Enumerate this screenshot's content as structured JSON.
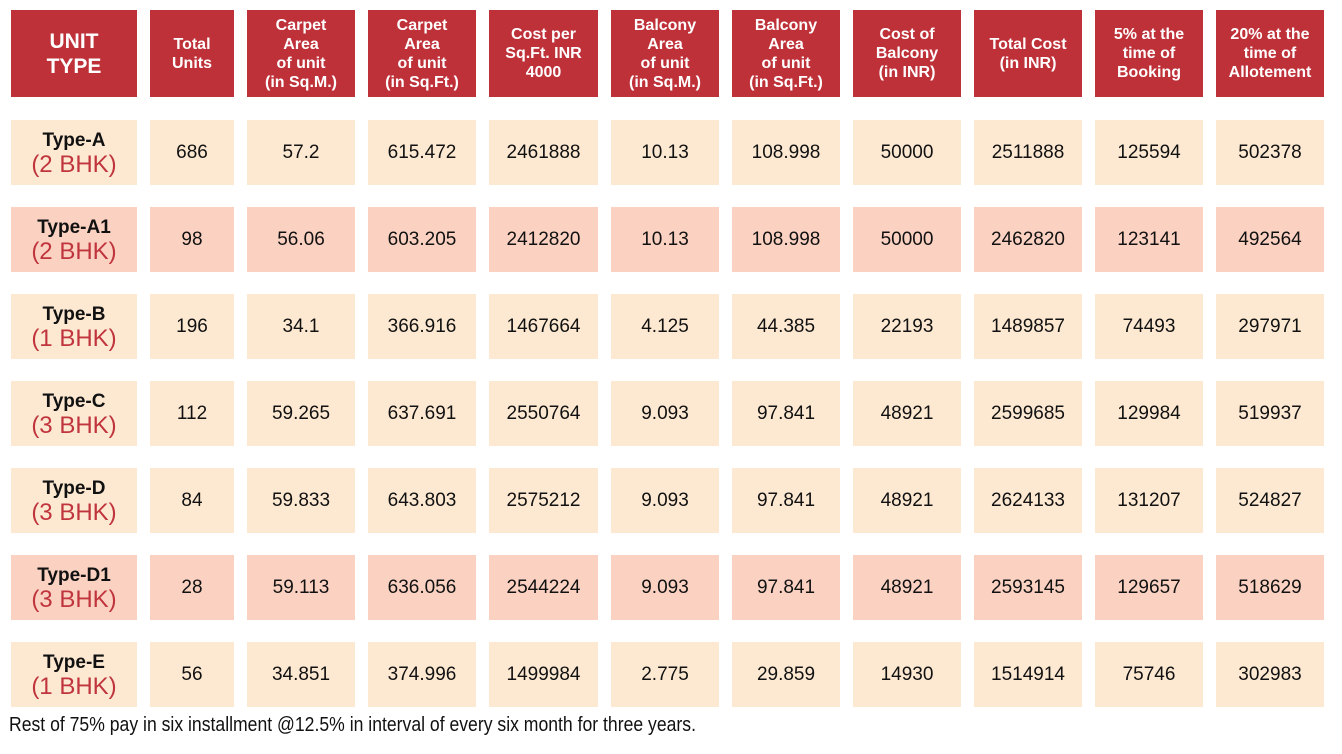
{
  "headers": [
    "UNIT\nTYPE",
    "Total\nUnits",
    "Carpet\nArea\nof unit\n(in Sq.M.)",
    "Carpet\nArea\nof unit\n(in Sq.Ft.)",
    "Cost per\nSq.Ft. INR\n4000",
    "Balcony\nArea\nof unit\n(in Sq.M.)",
    "Balcony\nArea\nof unit\n(in Sq.Ft.)",
    "Cost of\nBalcony\n(in INR)",
    "Total Cost\n(in INR)",
    "5% at the\ntime of\nBooking",
    "20% at the\ntime of\nAllotement"
  ],
  "colors": {
    "header_bg": "#bf3139",
    "row_light": "#fde9d2",
    "row_pink": "#fbd2c2",
    "bhk_text": "#c0353d"
  },
  "rows": [
    {
      "type": "Type-A",
      "bhk": "(2 BHK)",
      "shade": "light",
      "values": [
        "686",
        "57.2",
        "615.472",
        "2461888",
        "10.13",
        "108.998",
        "50000",
        "2511888",
        "125594",
        "502378"
      ]
    },
    {
      "type": "Type-A1",
      "bhk": "(2 BHK)",
      "shade": "pink",
      "values": [
        "98",
        "56.06",
        "603.205",
        "2412820",
        "10.13",
        "108.998",
        "50000",
        "2462820",
        "123141",
        "492564"
      ]
    },
    {
      "type": "Type-B",
      "bhk": "(1 BHK)",
      "shade": "light",
      "values": [
        "196",
        "34.1",
        "366.916",
        "1467664",
        "4.125",
        "44.385",
        "22193",
        "1489857",
        "74493",
        "297971"
      ]
    },
    {
      "type": "Type-C",
      "bhk": "(3 BHK)",
      "shade": "light",
      "values": [
        "112",
        "59.265",
        "637.691",
        "2550764",
        "9.093",
        "97.841",
        "48921",
        "2599685",
        "129984",
        "519937"
      ]
    },
    {
      "type": "Type-D",
      "bhk": "(3 BHK)",
      "shade": "light",
      "values": [
        "84",
        "59.833",
        "643.803",
        "2575212",
        "9.093",
        "97.841",
        "48921",
        "2624133",
        "131207",
        "524827"
      ]
    },
    {
      "type": "Type-D1",
      "bhk": "(3 BHK)",
      "shade": "pink",
      "values": [
        "28",
        "59.113",
        "636.056",
        "2544224",
        "9.093",
        "97.841",
        "48921",
        "2593145",
        "129657",
        "518629"
      ]
    },
    {
      "type": "Type-E",
      "bhk": "(1 BHK)",
      "shade": "light",
      "values": [
        "56",
        "34.851",
        "374.996",
        "1499984",
        "2.775",
        "29.859",
        "14930",
        "1514914",
        "75746",
        "302983"
      ]
    }
  ],
  "footer": "Rest of 75% pay in six installment @12.5% in interval of every six month for three years."
}
